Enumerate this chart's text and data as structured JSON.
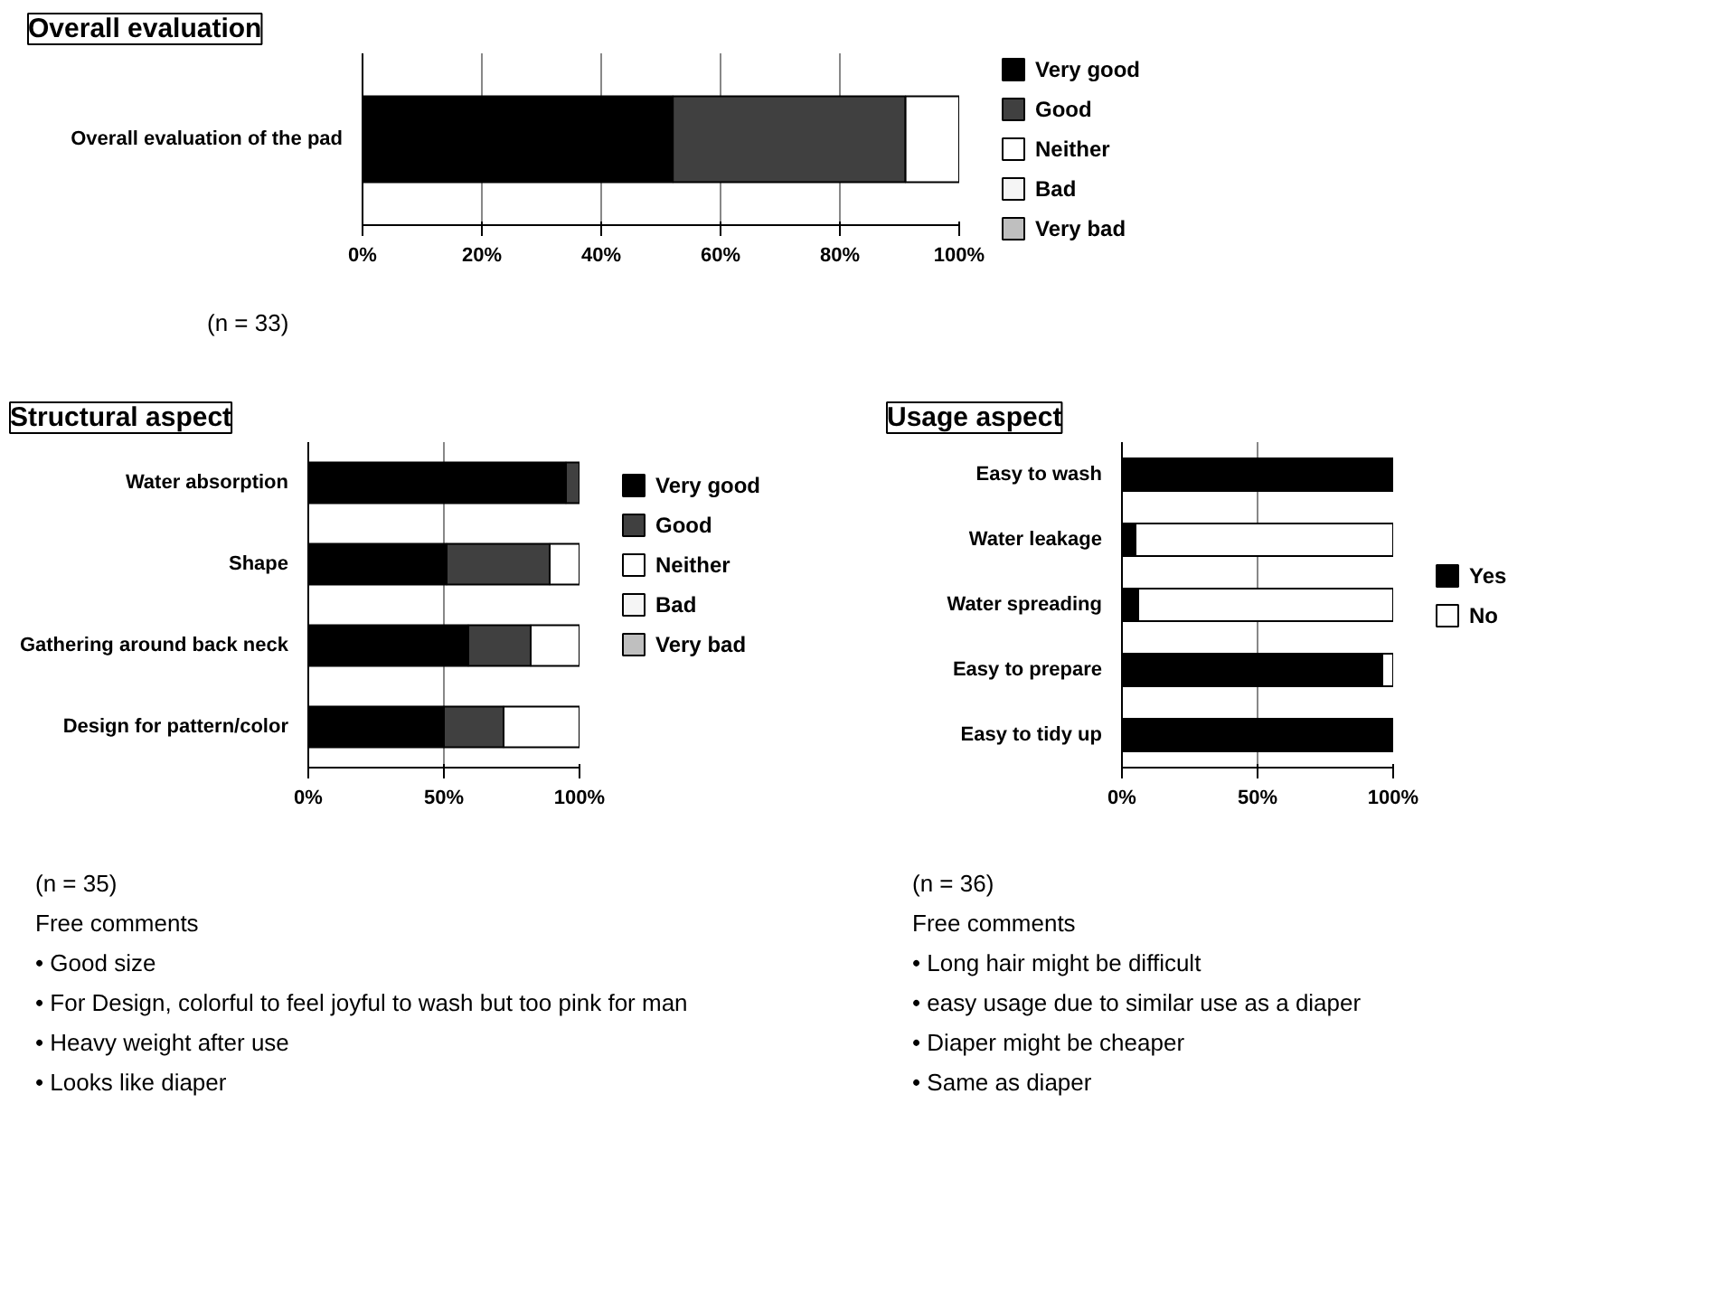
{
  "chart_data": [
    {
      "type": "bar",
      "orientation": "horizontal",
      "stacked": true,
      "title": "Overall evaluation",
      "categories": [
        "Overall evaluation of the pad"
      ],
      "xlim": [
        0,
        100
      ],
      "xticks": [
        {
          "value": 0,
          "label": "0%"
        },
        {
          "value": 20,
          "label": "20%"
        },
        {
          "value": 40,
          "label": "40%"
        },
        {
          "value": 60,
          "label": "60%"
        },
        {
          "value": 80,
          "label": "80%"
        },
        {
          "value": 100,
          "label": "100%"
        }
      ],
      "grid": "x",
      "legend": "right",
      "series": [
        {
          "name": "Very good",
          "color": "#000000",
          "values": [
            52
          ]
        },
        {
          "name": "Good",
          "color": "#404040",
          "values": [
            39
          ]
        },
        {
          "name": "Neither",
          "color": "#ffffff",
          "values": [
            9
          ]
        },
        {
          "name": "Bad",
          "color": "#f5f5f5",
          "values": [
            0
          ]
        },
        {
          "name": "Very bad",
          "color": "#bfbfbf",
          "values": [
            0
          ]
        }
      ],
      "annotations": [
        "(n = 33)"
      ]
    },
    {
      "type": "bar",
      "orientation": "horizontal",
      "stacked": true,
      "title": "Structural aspect",
      "categories": [
        "Water absorption",
        "Shape",
        "Gathering around back neck",
        "Design for pattern/color"
      ],
      "xlim": [
        0,
        100
      ],
      "xticks": [
        {
          "value": 0,
          "label": "0%"
        },
        {
          "value": 50,
          "label": "50%"
        },
        {
          "value": 100,
          "label": "100%"
        }
      ],
      "grid": "x",
      "legend": "right",
      "series": [
        {
          "name": "Very good",
          "color": "#000000",
          "values": [
            95,
            51,
            59,
            50
          ]
        },
        {
          "name": "Good",
          "color": "#404040",
          "values": [
            5,
            38,
            23,
            22
          ]
        },
        {
          "name": "Neither",
          "color": "#ffffff",
          "values": [
            0,
            11,
            18,
            28
          ]
        },
        {
          "name": "Bad",
          "color": "#f5f5f5",
          "values": [
            0,
            0,
            0,
            0
          ]
        },
        {
          "name": "Very bad",
          "color": "#bfbfbf",
          "values": [
            0,
            0,
            0,
            0
          ]
        }
      ],
      "annotations": [
        "(n = 35)",
        "Free comments",
        "•  Good size",
        "•  For Design, colorful to feel joyful to wash but too pink for man",
        "•  Heavy weight after use",
        "•  Looks like diaper"
      ]
    },
    {
      "type": "bar",
      "orientation": "horizontal",
      "stacked": true,
      "title": "Usage aspect",
      "categories": [
        "Easy to wash",
        "Water leakage",
        "Water spreading",
        "Easy to prepare",
        "Easy to tidy up"
      ],
      "xlim": [
        0,
        100
      ],
      "xticks": [
        {
          "value": 0,
          "label": "0%"
        },
        {
          "value": 50,
          "label": "50%"
        },
        {
          "value": 100,
          "label": "100%"
        }
      ],
      "grid": "x",
      "legend": "right",
      "series": [
        {
          "name": "Yes",
          "color": "#000000",
          "values": [
            100,
            5,
            6,
            96,
            100
          ]
        },
        {
          "name": "No",
          "color": "#ffffff",
          "values": [
            0,
            95,
            94,
            4,
            0
          ]
        }
      ],
      "annotations": [
        "(n = 36)",
        "Free comments",
        "•  Long hair might be difficult",
        "•  easy usage due to similar use as a diaper",
        "•  Diaper might be cheaper",
        "•  Same as diaper"
      ]
    }
  ]
}
